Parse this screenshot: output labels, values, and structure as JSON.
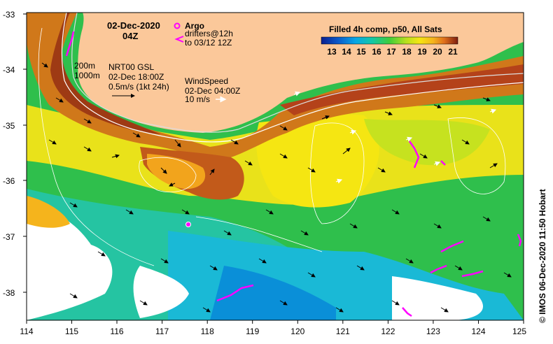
{
  "header": {
    "date": "02-Dec-2020",
    "hour": "04Z"
  },
  "legend": {
    "argo_label": "Argo",
    "drifters_line1": "drifters@12h",
    "drifters_line2": "to 03/12 12Z",
    "argo_color": "#ff00ff",
    "drifter_color": "#ff00ff"
  },
  "colorbar": {
    "title": "Filled 4h comp, p50, All Sats",
    "ticks": [
      "13",
      "14",
      "15",
      "16",
      "17",
      "18",
      "19",
      "20",
      "21"
    ],
    "colors": [
      "#0a1f8f",
      "#0b58c9",
      "#08a6e6",
      "#12c8a8",
      "#3fcd3a",
      "#b6e01e",
      "#f5e612",
      "#f5b41c",
      "#e0701c",
      "#b4421a",
      "#7d1e10"
    ]
  },
  "contours": {
    "line1": "200m",
    "line2": "1000m"
  },
  "currents": {
    "line1": "NRT00 GSL",
    "line2": "02-Dec 18:00Z",
    "line3": "0.5m/s (1kt 24h)"
  },
  "wind": {
    "line1": "WindSpeed",
    "line2": "02-Dec 04:00Z",
    "line3": "10 m/s"
  },
  "axes": {
    "x_ticks": [
      "114",
      "115",
      "116",
      "117",
      "118",
      "119",
      "120",
      "121",
      "122",
      "123",
      "124",
      "125"
    ],
    "y_ticks": [
      "-33",
      "-34",
      "-35",
      "-36",
      "-37",
      "-38"
    ]
  },
  "credit": "© IMOS 06-Dec-2020 11:50 Hobart",
  "colors": {
    "land": "#fbc89a",
    "no_data": "#ffffff"
  }
}
